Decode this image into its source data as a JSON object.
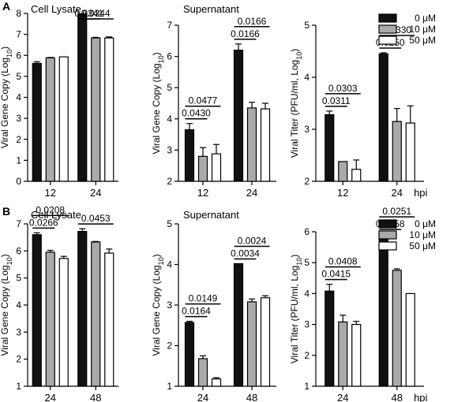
{
  "panel_labels": [
    "A",
    "B"
  ],
  "legend": {
    "entries": [
      "0 μM",
      "10 μM",
      "50 μM"
    ],
    "fills": [
      "#111111",
      "#aaaaaa",
      "#ffffff"
    ]
  },
  "chart_data": [
    {
      "type": "bar",
      "panel": "A",
      "title": "Cell Lysate",
      "ylabel": "Viral Gene Copy (Log10)",
      "ylabel_sub": "",
      "ylim": [
        0,
        8
      ],
      "yticks": [
        0,
        1,
        2,
        3,
        4,
        5,
        6,
        7,
        8
      ],
      "categories": [
        "12",
        "24"
      ],
      "x_unit": "",
      "series": [
        {
          "name": "0 μM",
          "values": [
            5.62,
            7.98
          ],
          "errors": [
            0.08,
            0.0
          ]
        },
        {
          "name": "10 μM",
          "values": [
            5.88,
            6.83
          ],
          "errors": [
            0.02,
            0.03
          ]
        },
        {
          "name": "50 μM",
          "values": [
            5.93,
            6.83
          ],
          "errors": [
            0.0,
            0.05
          ]
        }
      ],
      "annotations": [
        {
          "group": 1,
          "from": 0,
          "to": 1,
          "level": 1,
          "text": "0.0341"
        },
        {
          "group": 1,
          "from": 0,
          "to": 2,
          "level": 2,
          "text": "0.0344"
        }
      ],
      "legend": false
    },
    {
      "type": "bar",
      "panel": "A",
      "title": "Supernatant",
      "ylabel": "Viral Gene Copy (Log10)",
      "ylabel_sub": "",
      "ylim": [
        2,
        7
      ],
      "yticks": [
        2,
        3,
        4,
        5,
        6,
        7
      ],
      "categories": [
        "12",
        "24"
      ],
      "x_unit": "",
      "series": [
        {
          "name": "0 μM",
          "values": [
            3.65,
            6.2
          ],
          "errors": [
            0.2,
            0.2
          ]
        },
        {
          "name": "10 μM",
          "values": [
            2.8,
            4.35
          ],
          "errors": [
            0.28,
            0.18
          ]
        },
        {
          "name": "50 μM",
          "values": [
            2.88,
            4.32
          ],
          "errors": [
            0.3,
            0.18
          ]
        }
      ],
      "annotations": [
        {
          "group": 0,
          "from": 0,
          "to": 1,
          "level": 1,
          "text": "0.0430"
        },
        {
          "group": 0,
          "from": 0,
          "to": 2,
          "level": 2,
          "text": "0.0477"
        },
        {
          "group": 1,
          "from": 0,
          "to": 1,
          "level": 1,
          "text": "0.0166"
        },
        {
          "group": 1,
          "from": 0,
          "to": 2,
          "level": 2,
          "text": "0.0166"
        }
      ],
      "legend": false
    },
    {
      "type": "bar",
      "panel": "A",
      "title": "",
      "ylabel": "Viral Titer (PFU/ml, Log10)",
      "ylabel_sub": "",
      "ylim": [
        2,
        5
      ],
      "yticks": [
        2,
        3,
        4,
        5
      ],
      "categories": [
        "12",
        "24"
      ],
      "x_unit": "hpi",
      "series": [
        {
          "name": "0 μM",
          "values": [
            3.28,
            4.45
          ],
          "errors": [
            0.07,
            0.02
          ]
        },
        {
          "name": "10 μM",
          "values": [
            2.38,
            3.15
          ],
          "errors": [
            0.0,
            0.25
          ]
        },
        {
          "name": "50 μM",
          "values": [
            2.23,
            3.12
          ],
          "errors": [
            0.18,
            0.33
          ]
        }
      ],
      "annotations": [
        {
          "group": 0,
          "from": 0,
          "to": 1,
          "level": 1,
          "text": "0.0311"
        },
        {
          "group": 0,
          "from": 0,
          "to": 2,
          "level": 2,
          "text": "0.0303"
        },
        {
          "group": 1,
          "from": 0,
          "to": 1,
          "level": 1,
          "text": "0.0250"
        },
        {
          "group": 1,
          "from": 0,
          "to": 2,
          "level": 2,
          "text": "0.0330"
        }
      ],
      "legend": true
    },
    {
      "type": "bar",
      "panel": "B",
      "title": "Cell Lysate",
      "ylabel": "Viral Gene Copy (Log10)",
      "ylabel_sub": "",
      "ylim": [
        1,
        7
      ],
      "yticks": [
        1,
        2,
        3,
        4,
        5,
        6,
        7
      ],
      "categories": [
        "24",
        "48"
      ],
      "x_unit": "",
      "series": [
        {
          "name": "0 μM",
          "values": [
            6.6,
            6.72
          ],
          "errors": [
            0.07,
            0.1
          ]
        },
        {
          "name": "10 μM",
          "values": [
            5.95,
            6.33
          ],
          "errors": [
            0.07,
            0.02
          ]
        },
        {
          "name": "50 μM",
          "values": [
            5.72,
            5.92
          ],
          "errors": [
            0.08,
            0.15
          ]
        }
      ],
      "annotations": [
        {
          "group": 0,
          "from": 0,
          "to": 1,
          "level": 1,
          "text": "0.0266"
        },
        {
          "group": 0,
          "from": 0,
          "to": 2,
          "level": 2,
          "text": "0.0208"
        },
        {
          "group": 1,
          "from": 0,
          "to": 2,
          "level": 1,
          "text": "0.0453"
        }
      ],
      "legend": false
    },
    {
      "type": "bar",
      "panel": "B",
      "title": "Supernatant",
      "ylabel": "Viral Gene Copy (Log10)",
      "ylabel_sub": "",
      "ylim": [
        1,
        5
      ],
      "yticks": [
        1,
        2,
        3,
        4,
        5
      ],
      "categories": [
        "24",
        "48"
      ],
      "x_unit": "",
      "series": [
        {
          "name": "0 μM",
          "values": [
            2.57,
            4.02
          ],
          "errors": [
            0.03,
            0.0
          ]
        },
        {
          "name": "10 μM",
          "values": [
            1.68,
            3.08
          ],
          "errors": [
            0.07,
            0.07
          ]
        },
        {
          "name": "50 μM",
          "values": [
            1.18,
            3.18
          ],
          "errors": [
            0.03,
            0.05
          ]
        }
      ],
      "annotations": [
        {
          "group": 0,
          "from": 0,
          "to": 1,
          "level": 1,
          "text": "0.0164"
        },
        {
          "group": 0,
          "from": 0,
          "to": 2,
          "level": 2,
          "text": "0.0149"
        },
        {
          "group": 1,
          "from": 0,
          "to": 1,
          "level": 1,
          "text": "0.0034"
        },
        {
          "group": 1,
          "from": 0,
          "to": 2,
          "level": 2,
          "text": "0.0024"
        }
      ],
      "legend": false
    },
    {
      "type": "bar",
      "panel": "B",
      "title": "",
      "ylabel": "Viral Titer (PFU/ml, Log10)",
      "ylabel_sub": "",
      "ylim": [
        1,
        6
      ],
      "yticks": [
        1,
        2,
        3,
        4,
        5,
        6
      ],
      "categories": [
        "24",
        "48"
      ],
      "x_unit": "hpi",
      "series": [
        {
          "name": "0 μM",
          "values": [
            4.08,
            5.82
          ],
          "errors": [
            0.22,
            0.1
          ]
        },
        {
          "name": "10 μM",
          "values": [
            3.08,
            4.75
          ],
          "errors": [
            0.22,
            0.05
          ]
        },
        {
          "name": "50 μM",
          "values": [
            3.0,
            4.0
          ],
          "errors": [
            0.1,
            0.0
          ]
        }
      ],
      "annotations": [
        {
          "group": 0,
          "from": 0,
          "to": 1,
          "level": 1,
          "text": "0.0415"
        },
        {
          "group": 0,
          "from": 0,
          "to": 2,
          "level": 2,
          "text": "0.0408"
        },
        {
          "group": 1,
          "from": 0,
          "to": 1,
          "level": 1,
          "text": "0.0258"
        },
        {
          "group": 1,
          "from": 0,
          "to": 2,
          "level": 2,
          "text": "0.0251"
        }
      ],
      "legend": true
    }
  ]
}
